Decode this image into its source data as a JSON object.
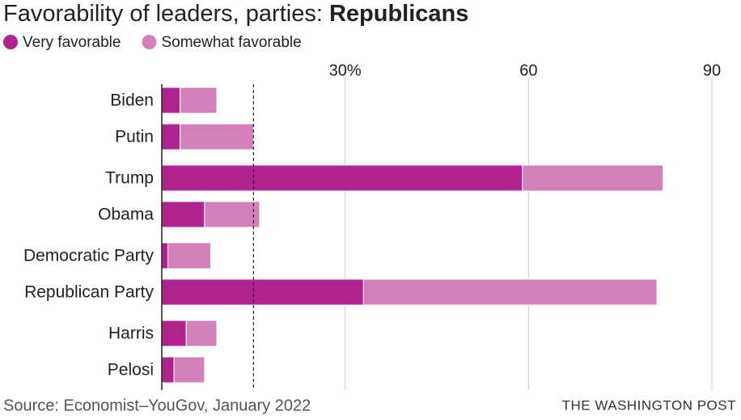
{
  "chart_data": {
    "type": "stacked_bar_horizontal",
    "title": "Favorability of leaders, parties:",
    "title_emphasis": "Republicans",
    "categories": [
      "Biden",
      "Putin",
      "Trump",
      "Obama",
      "Democratic Party",
      "Republican Party",
      "Harris",
      "Pelosi"
    ],
    "series": [
      {
        "name": "Very favorable",
        "color": "#b0238f",
        "values": [
          3,
          3,
          59,
          7,
          1,
          33,
          4,
          2
        ]
      },
      {
        "name": "Somewhat favorable",
        "color": "#d480b8",
        "values": [
          6,
          12,
          23,
          9,
          7,
          48,
          5,
          5
        ]
      }
    ],
    "xlim": [
      0,
      90
    ],
    "xticks": [
      {
        "value": 30,
        "label": "30%"
      },
      60,
      90
    ],
    "reference_line": 15,
    "grid": true,
    "source": "Source: Economist–YouGov, January 2022",
    "credit": "THE WASHINGTON POST"
  }
}
